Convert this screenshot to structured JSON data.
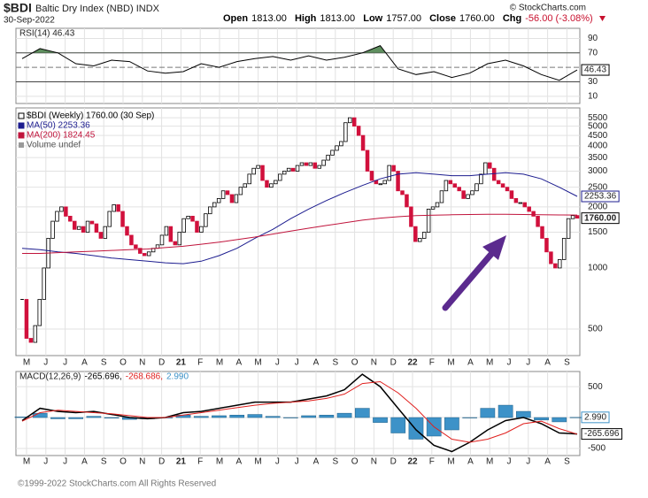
{
  "header": {
    "symbol": "$BDI",
    "name": "Baltic Dry Index (NBD) INDX",
    "date": "30-Sep-2022",
    "source": "© StockCharts.com",
    "quote": [
      {
        "label": "Open",
        "value": "1813.00"
      },
      {
        "label": "High",
        "value": "1813.00"
      },
      {
        "label": "Low",
        "value": "1757.00"
      },
      {
        "label": "Close",
        "value": "1760.00"
      }
    ],
    "change_label": "Chg",
    "change": "-56.00 (-3.08%)"
  },
  "chart_data": [
    {
      "type": "line",
      "title": "RSI(14) 46.43",
      "ylim": [
        0,
        104
      ],
      "yticks": [
        90,
        70,
        30,
        10
      ],
      "levels": [
        70,
        30
      ],
      "centerline": 50,
      "fill_above": 70,
      "fill_color": "#5f8f5f",
      "grid": true,
      "series": [
        {
          "color": "#000000",
          "value_label": "46.43",
          "values": [
            62,
            76,
            70,
            55,
            52,
            60,
            58,
            45,
            42,
            44,
            55,
            50,
            58,
            62,
            65,
            60,
            66,
            60,
            64,
            70,
            80,
            48,
            40,
            44,
            36,
            42,
            55,
            60,
            52,
            40,
            32,
            46.43
          ]
        }
      ]
    },
    {
      "type": "candlestick",
      "log_scale": true,
      "ylim": [
        370,
        6150
      ],
      "yticks": [
        5500,
        5000,
        4500,
        4000,
        3500,
        3000,
        2500,
        2000,
        1500,
        1000,
        500
      ],
      "xticks": [
        "M",
        "J",
        "J",
        "A",
        "S",
        "O",
        "N",
        "D",
        "21",
        "F",
        "M",
        "A",
        "M",
        "J",
        "J",
        "A",
        "S",
        "O",
        "N",
        "D",
        "22",
        "F",
        "M",
        "A",
        "M",
        "J",
        "J",
        "A",
        "S"
      ],
      "grid": true,
      "legend_extra": "Volume undef",
      "series": [
        {
          "name": "$BDI (Weekly) 1760.00 (30 Sep)",
          "type": "candle",
          "color": "#000000",
          "down_color": "#d1103c",
          "value_label": "1760.00",
          "values": [
            700,
            450,
            430,
            520,
            700,
            1000,
            1400,
            1700,
            1900,
            2000,
            1800,
            1700,
            1550,
            1600,
            1500,
            1700,
            1650,
            1500,
            1400,
            1600,
            1900,
            2050,
            1900,
            1600,
            1450,
            1300,
            1250,
            1180,
            1150,
            1200,
            1250,
            1300,
            1450,
            1600,
            1350,
            1300,
            1500,
            1750,
            1800,
            1700,
            1500,
            1600,
            1850,
            2000,
            2100,
            2200,
            2400,
            2300,
            2100,
            2300,
            2500,
            2600,
            2900,
            3100,
            3200,
            2700,
            2500,
            2600,
            2700,
            2900,
            3000,
            3100,
            3000,
            3200,
            3300,
            3200,
            3300,
            3100,
            3200,
            3400,
            3600,
            3800,
            4000,
            4200,
            5200,
            5500,
            5000,
            4500,
            3800,
            3000,
            2700,
            2600,
            2600,
            2700,
            3200,
            3000,
            2400,
            2300,
            2000,
            1600,
            1350,
            1400,
            1500,
            1950,
            2000,
            2100,
            2400,
            2700,
            2600,
            2500,
            2400,
            2200,
            2300,
            2400,
            2600,
            2900,
            3300,
            3100,
            2700,
            2600,
            2500,
            2400,
            2200,
            2100,
            2100,
            2000,
            1900,
            1800,
            1600,
            1400,
            1200,
            1050,
            1000,
            1100,
            1400,
            1750,
            1813,
            1760
          ]
        },
        {
          "name": "MA(50) 2253.36",
          "type": "line",
          "color": "#1c1c8f",
          "value_label": "2253.36",
          "values": [
            1250,
            1230,
            1200,
            1180,
            1150,
            1120,
            1100,
            1080,
            1060,
            1050,
            1080,
            1150,
            1250,
            1400,
            1550,
            1750,
            1950,
            2150,
            2350,
            2550,
            2750,
            2900,
            2950,
            2900,
            2850,
            2850,
            2900,
            2950,
            2900,
            2750,
            2500,
            2253.36
          ]
        },
        {
          "name": "MA(200) 1824.45",
          "type": "line",
          "color": "#c0143c",
          "values": [
            1180,
            1180,
            1190,
            1200,
            1210,
            1220,
            1230,
            1240,
            1260,
            1280,
            1310,
            1340,
            1380,
            1420,
            1470,
            1520,
            1570,
            1620,
            1670,
            1720,
            1760,
            1790,
            1810,
            1820,
            1830,
            1835,
            1840,
            1840,
            1835,
            1830,
            1826,
            1824.45
          ]
        }
      ]
    },
    {
      "type": "macd",
      "title": "MACD(12,26,9)",
      "ylim": [
        -615,
        745
      ],
      "yticks": [
        500,
        0,
        -500
      ],
      "grid": true,
      "series": [
        {
          "type": "line",
          "color": "#000000",
          "legend": "-265.696,",
          "value_label": "-265.696",
          "values": [
            -50,
            150,
            100,
            80,
            100,
            50,
            0,
            -20,
            0,
            80,
            100,
            150,
            200,
            250,
            250,
            250,
            300,
            350,
            450,
            700,
            500,
            150,
            -200,
            -450,
            -550,
            -400,
            -200,
            -50,
            0,
            -100,
            -250,
            -265.696
          ]
        },
        {
          "type": "line",
          "color": "#e0201e",
          "legend": "-268.686,",
          "values": [
            -60,
            80,
            120,
            100,
            80,
            60,
            30,
            0,
            0,
            40,
            80,
            120,
            160,
            200,
            230,
            250,
            270,
            310,
            380,
            550,
            580,
            400,
            150,
            -150,
            -350,
            -400,
            -350,
            -250,
            -100,
            -60,
            -180,
            -268.686
          ]
        },
        {
          "type": "histogram",
          "color": "#3d92c8",
          "legend": "2.990",
          "value_label": "2.990",
          "values": [
            10,
            70,
            -20,
            -20,
            20,
            -10,
            -30,
            -20,
            0,
            40,
            20,
            30,
            40,
            50,
            20,
            0,
            30,
            40,
            70,
            150,
            -80,
            -250,
            -350,
            -300,
            -200,
            0,
            150,
            200,
            100,
            -40,
            -70,
            2.99
          ]
        }
      ]
    }
  ],
  "footer": "©1999-2022 StockCharts.com All Rights Reserved"
}
